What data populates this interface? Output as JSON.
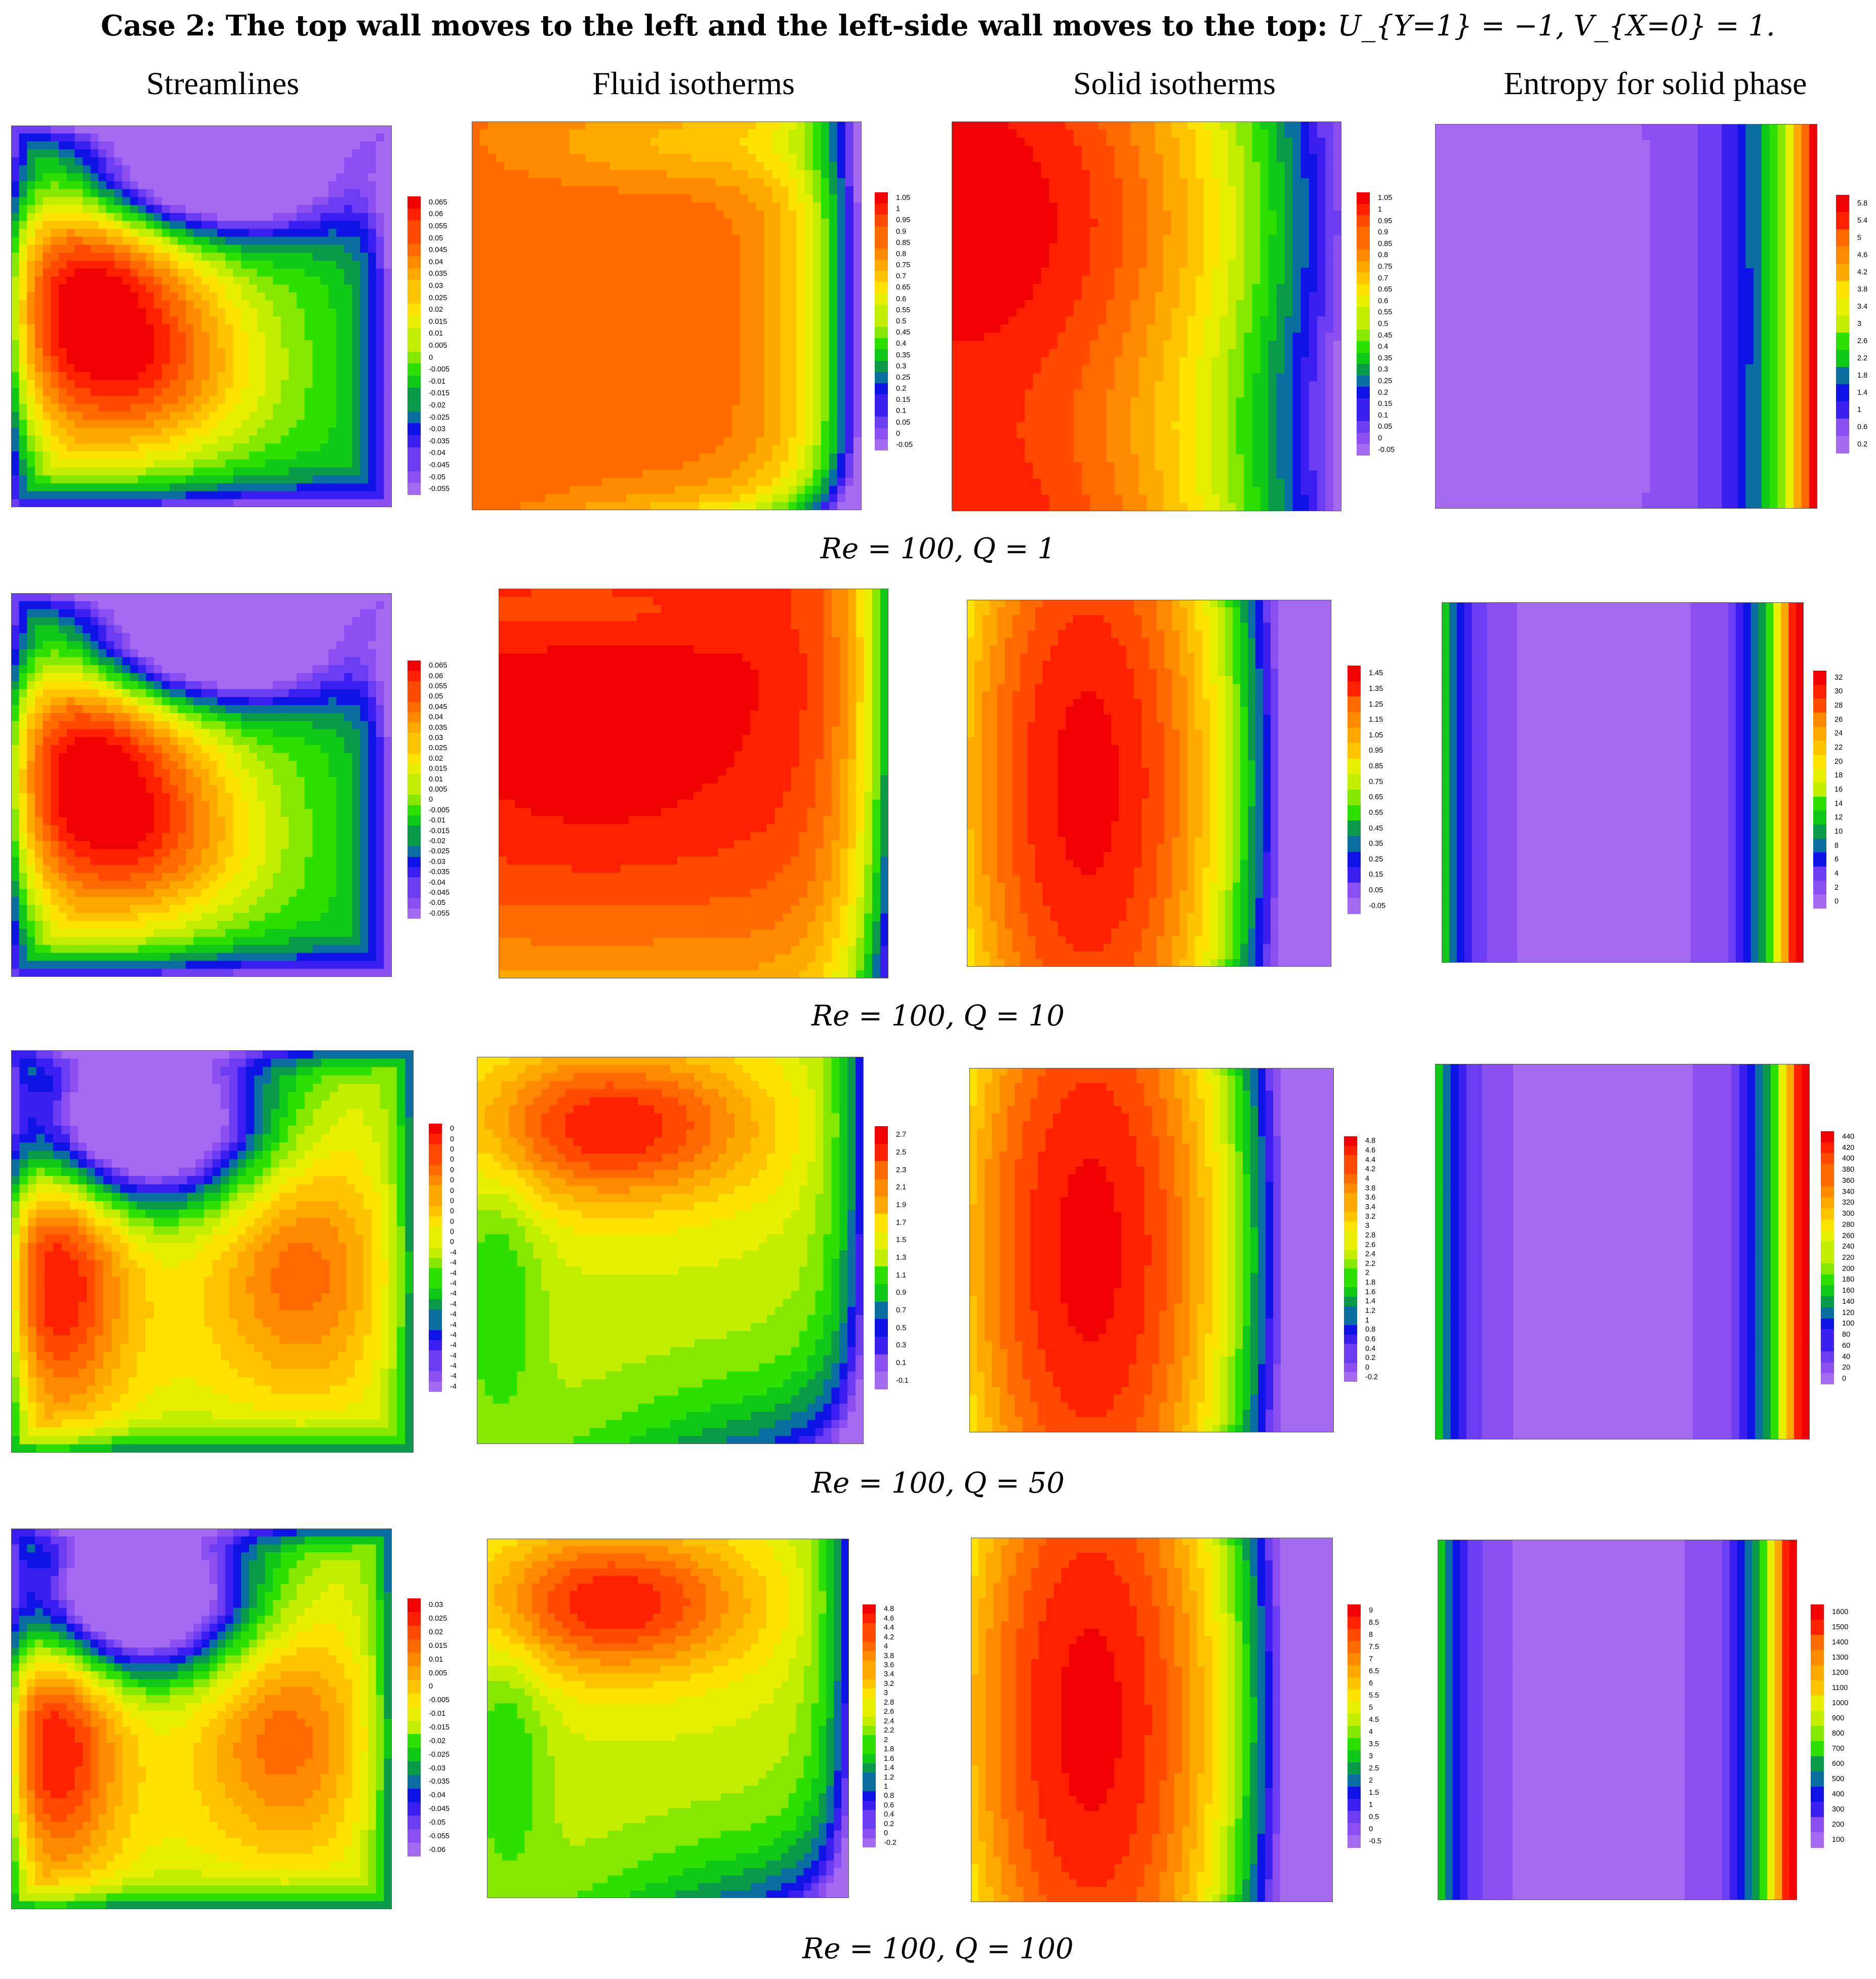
{
  "title": "Case 2: The top wall moves to the left and the left-side wall moves to the top:",
  "title_math": "U_{Y=1} = −1, V_{X=0} = 1.",
  "columns": [
    "Streamlines",
    "Fluid isotherms",
    "Solid isotherms",
    "Entropy for solid phase"
  ],
  "palette": [
    "#a46bf0",
    "#8a4ff0",
    "#6a3cf2",
    "#3a1ff0",
    "#0f14e6",
    "#0a6fa0",
    "#0a9a4a",
    "#10c818",
    "#2ee000",
    "#86e800",
    "#c4ee00",
    "#e8f000",
    "#ffe200",
    "#ffc400",
    "#ffa800",
    "#ff8a00",
    "#ff6a00",
    "#ff4a00",
    "#ff2000",
    "#f00000"
  ],
  "rows": [
    {
      "caption": "Re = 100, Q = 1",
      "legends": {
        "streamlines": [
          "0.065",
          "0.06",
          "0.055",
          "0.05",
          "0.045",
          "0.04",
          "0.035",
          "0.03",
          "0.025",
          "0.02",
          "0.015",
          "0.01",
          "0.005",
          "0",
          "-0.005",
          "-0.01",
          "-0.015",
          "-0.02",
          "-0.025",
          "-0.03",
          "-0.035",
          "-0.04",
          "-0.045",
          "-0.05",
          "-0.055"
        ],
        "fluid": [
          "1.05",
          "1",
          "0.95",
          "0.9",
          "0.85",
          "0.8",
          "0.75",
          "0.7",
          "0.65",
          "0.6",
          "0.55",
          "0.5",
          "0.45",
          "0.4",
          "0.35",
          "0.3",
          "0.25",
          "0.2",
          "0.15",
          "0.1",
          "0.05",
          "0",
          "-0.05"
        ],
        "solid": [
          "1.05",
          "1",
          "0.95",
          "0.9",
          "0.85",
          "0.8",
          "0.75",
          "0.7",
          "0.65",
          "0.6",
          "0.55",
          "0.5",
          "0.45",
          "0.4",
          "0.35",
          "0.3",
          "0.25",
          "0.2",
          "0.15",
          "0.1",
          "0.05",
          "0",
          "-0.05"
        ],
        "entropy": [
          "5.8",
          "5.4",
          "5",
          "4.6",
          "4.2",
          "3.8",
          "3.4",
          "3",
          "2.6",
          "2.2",
          "1.8",
          "1.4",
          "1",
          "0.6",
          "0.2"
        ]
      }
    },
    {
      "caption": "Re = 100, Q = 10",
      "legends": {
        "streamlines": [
          "0.065",
          "0.06",
          "0.055",
          "0.05",
          "0.045",
          "0.04",
          "0.035",
          "0.03",
          "0.025",
          "0.02",
          "0.015",
          "0.01",
          "0.005",
          "0",
          "-0.005",
          "-0.01",
          "-0.015",
          "-0.02",
          "-0.025",
          "-0.03",
          "-0.035",
          "-0.04",
          "-0.045",
          "-0.05",
          "-0.055"
        ],
        "fluid": [],
        "solid": [
          "1.45",
          "1.35",
          "1.25",
          "1.15",
          "1.05",
          "0.95",
          "0.85",
          "0.75",
          "0.65",
          "0.55",
          "0.45",
          "0.35",
          "0.25",
          "0.15",
          "0.05",
          "-0.05"
        ],
        "entropy": [
          "32",
          "30",
          "28",
          "26",
          "24",
          "22",
          "20",
          "18",
          "16",
          "14",
          "12",
          "10",
          "8",
          "6",
          "4",
          "2",
          "0"
        ]
      }
    },
    {
      "caption": "Re = 100, Q = 50",
      "legends": {
        "streamlines": [
          "0",
          "0",
          "0",
          "0",
          "0",
          "0",
          "0",
          "0",
          "0",
          "0",
          "0",
          "0",
          "-4",
          "-4",
          "-4",
          "-4",
          "-4",
          "-4",
          "-4",
          "-4",
          "-4",
          "-4",
          "-4",
          "-4",
          "-4",
          "-4"
        ],
        "fluid": [
          "2.7",
          "2.5",
          "2.3",
          "2.1",
          "1.9",
          "1.7",
          "1.5",
          "1.3",
          "1.1",
          "0.9",
          "0.7",
          "0.5",
          "0.3",
          "0.1",
          "-0.1"
        ],
        "solid": [
          "4.8",
          "4.6",
          "4.4",
          "4.2",
          "4",
          "3.8",
          "3.6",
          "3.4",
          "3.2",
          "3",
          "2.8",
          "2.6",
          "2.4",
          "2.2",
          "2",
          "1.8",
          "1.6",
          "1.4",
          "1.2",
          "1",
          "0.8",
          "0.6",
          "0.4",
          "0.2",
          "0",
          "-0.2"
        ],
        "entropy": [
          "440",
          "420",
          "400",
          "380",
          "360",
          "340",
          "320",
          "300",
          "280",
          "260",
          "240",
          "220",
          "200",
          "180",
          "160",
          "140",
          "120",
          "100",
          "80",
          "60",
          "40",
          "20",
          "0"
        ]
      }
    },
    {
      "caption": "Re = 100, Q = 100",
      "legends": {
        "streamlines": [
          "0.03",
          "0.025",
          "0.02",
          "0.015",
          "0.01",
          "0.005",
          "0",
          "-0.005",
          "-0.01",
          "-0.015",
          "-0.02",
          "-0.025",
          "-0.03",
          "-0.035",
          "-0.04",
          "-0.045",
          "-0.05",
          "-0.055",
          "-0.06"
        ],
        "fluid": [
          "4.8",
          "4.6",
          "4.4",
          "4.2",
          "4",
          "3.8",
          "3.6",
          "3.4",
          "3.2",
          "3",
          "2.8",
          "2.6",
          "2.4",
          "2.2",
          "2",
          "1.8",
          "1.6",
          "1.4",
          "1.2",
          "1",
          "0.8",
          "0.6",
          "0.4",
          "0.2",
          "0",
          "-0.2"
        ],
        "solid": [
          "9",
          "8.5",
          "8",
          "7.5",
          "7",
          "6.5",
          "6",
          "5.5",
          "5",
          "4.5",
          "4",
          "3.5",
          "3",
          "2.5",
          "2",
          "1.5",
          "1",
          "0.5",
          "0",
          "-0.5"
        ],
        "entropy": [
          "1600",
          "1500",
          "1400",
          "1300",
          "1200",
          "1100",
          "1000",
          "900",
          "800",
          "700",
          "600",
          "500",
          "400",
          "300",
          "200",
          "100"
        ]
      }
    }
  ]
}
